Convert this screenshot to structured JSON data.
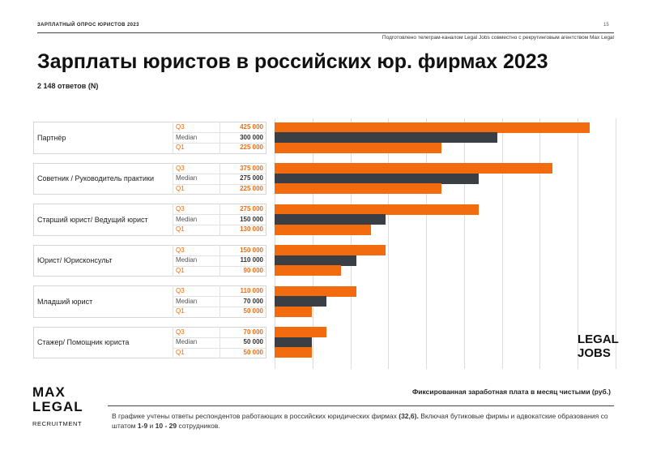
{
  "header": {
    "survey_title": "ЗАРПЛАТНЫЙ ОПРОС ЮРИСТОВ 2023",
    "page_number": "15",
    "prepared_by": "Подготовлено телеграм-каналом Legal Jobs совместно с рекрутинговым агентством Max Legal"
  },
  "chart_data": {
    "type": "bar",
    "title": "Зарплаты юристов в российских юр. фирмах 2023",
    "subtitle": "2 148 ответов (N)",
    "xlabel": "Фиксированная заработная плата в месяц чистыми (руб.)",
    "row_labels": [
      "Q3",
      "Median",
      "Q1"
    ],
    "xlim": [
      0,
      460000
    ],
    "categories": [
      {
        "name": "Партнёр",
        "q3": 425000,
        "median": 300000,
        "q1": 225000,
        "q3_label": "425 000",
        "median_label": "300 000",
        "q1_label": "225 000"
      },
      {
        "name": "Советник / Руководитель практики",
        "q3": 375000,
        "median": 275000,
        "q1": 225000,
        "q3_label": "375 000",
        "median_label": "275 000",
        "q1_label": "225 000"
      },
      {
        "name": "Старший юрист/ Ведущий юрист",
        "q3": 275000,
        "median": 150000,
        "q1": 130000,
        "q3_label": "275 000",
        "median_label": "150 000",
        "q1_label": "130 000"
      },
      {
        "name": "Юрист/ Юрисконсульт",
        "q3": 150000,
        "median": 110000,
        "q1": 90000,
        "q3_label": "150 000",
        "median_label": "110 000",
        "q1_label": "90 000"
      },
      {
        "name": "Младший юрист",
        "q3": 110000,
        "median": 70000,
        "q1": 50000,
        "q3_label": "110 000",
        "median_label": "70 000",
        "q1_label": "50 000"
      },
      {
        "name": "Стажер/ Помощник юриста",
        "q3": 70000,
        "median": 50000,
        "q1": 50000,
        "q3_label": "70 000",
        "median_label": "50 000",
        "q1_label": "50 000"
      }
    ],
    "colors": {
      "quartile": "#f26b0f",
      "median": "#3a3f45"
    }
  },
  "footnote": {
    "part1": "В графике учтены ответы респондентов работающих в российских юридических фирмах ",
    "bold1": "(32,6).",
    "part2": " Включая бутиковые фирмы и адвокатские образования со штатом ",
    "bold2": "1-9",
    "part3": " и ",
    "bold3": "10 - 29",
    "part4": " сотрудников."
  },
  "logos": {
    "max_legal_line1": "MAX",
    "max_legal_line2": "LEGAL",
    "max_legal_sub": "RECRUITMENT",
    "legal_jobs_line1": "LEGAL",
    "legal_jobs_line2": "JOBS"
  }
}
